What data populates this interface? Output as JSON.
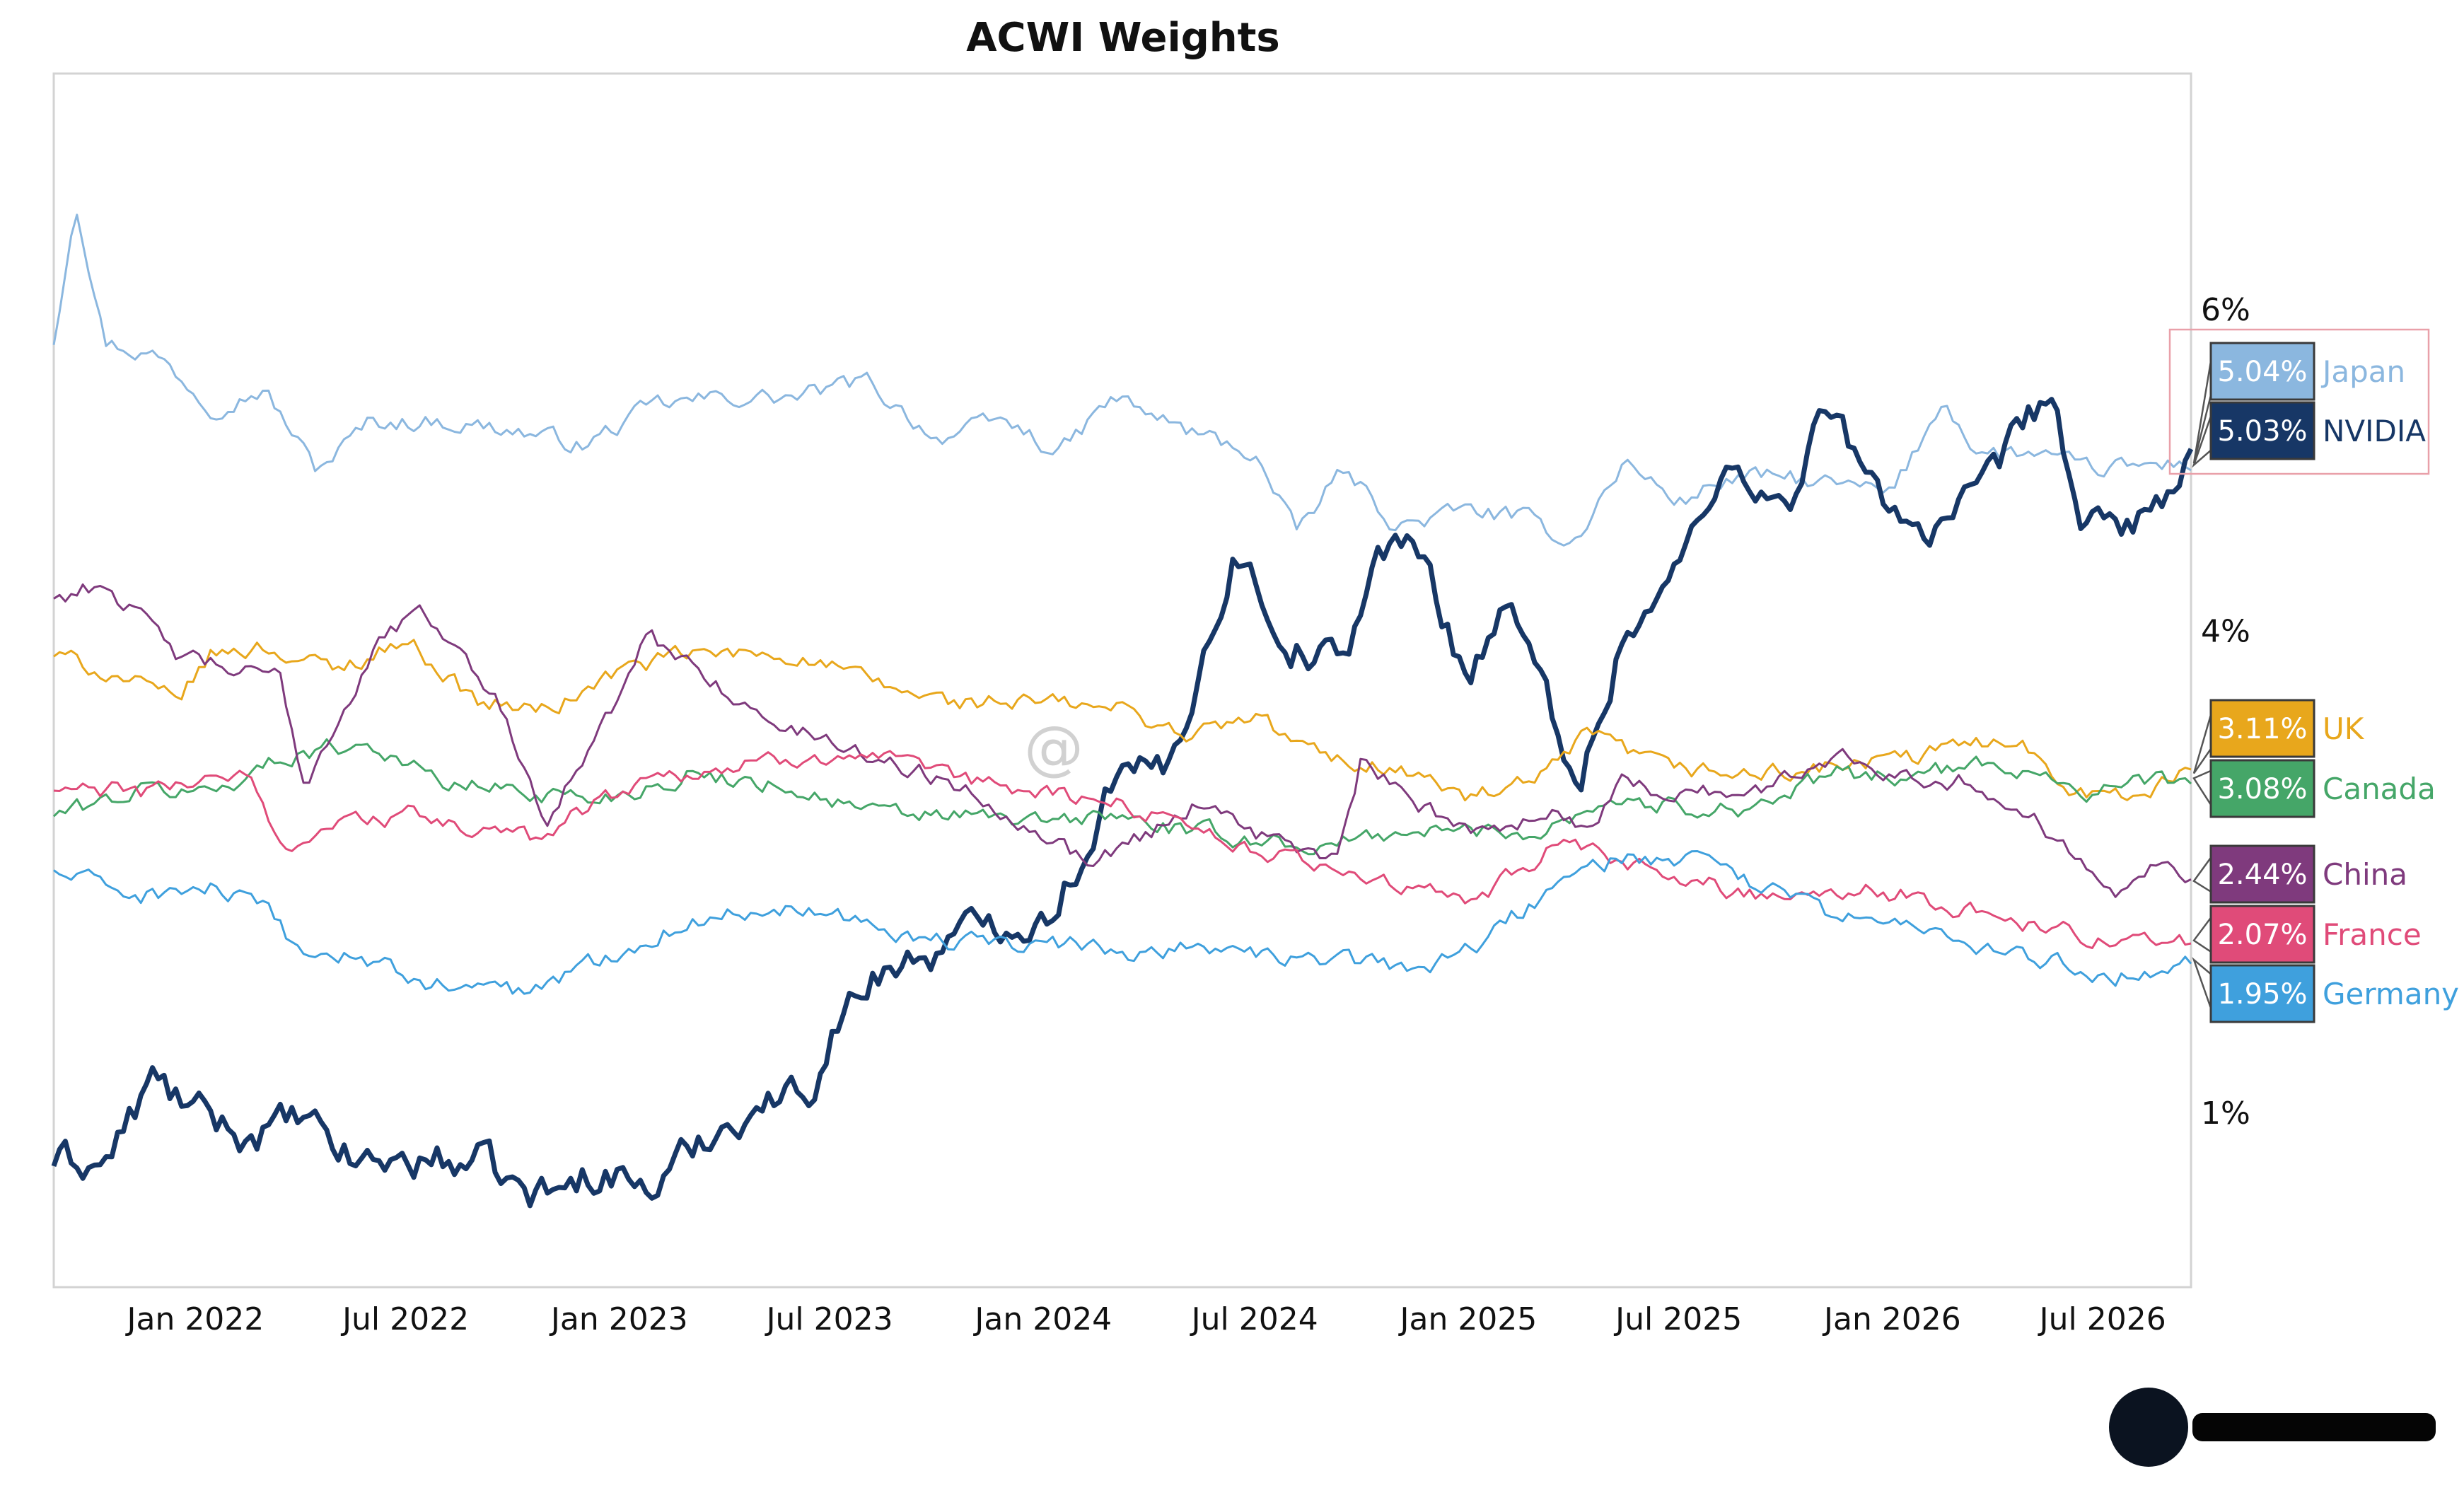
{
  "chart_data": {
    "type": "line",
    "title": "ACWI Weights",
    "xlabel": "",
    "ylabel": "",
    "x_ticks": [
      "Jan 2022",
      "Jul 2022",
      "Jan 2023",
      "Jul 2023",
      "Jan 2024",
      "Jul 2024",
      "Jan 2025",
      "Jul 2025",
      "Jan 2026",
      "Jul 2026"
    ],
    "y_ticks": [
      "1%",
      "4%",
      "6%"
    ],
    "ylim": [
      0,
      7
    ],
    "xlim": [
      "2021-09-01",
      "2026-09-15"
    ],
    "grid": false,
    "series": [
      {
        "name": "Japan",
        "last_label": "5.04%",
        "color": "#8bb7df",
        "width": 3,
        "points": [
          [
            "2021-09-01",
            5.8
          ],
          [
            "2021-09-20",
            6.7
          ],
          [
            "2021-10-15",
            5.8
          ],
          [
            "2021-12-01",
            5.7
          ],
          [
            "2022-01-15",
            5.4
          ],
          [
            "2022-03-01",
            5.5
          ],
          [
            "2022-04-15",
            5.0
          ],
          [
            "2022-06-01",
            5.3
          ],
          [
            "2022-08-01",
            5.3
          ],
          [
            "2022-10-01",
            5.25
          ],
          [
            "2022-12-01",
            5.15
          ],
          [
            "2023-02-01",
            5.4
          ],
          [
            "2023-04-01",
            5.45
          ],
          [
            "2023-06-01",
            5.45
          ],
          [
            "2023-08-01",
            5.55
          ],
          [
            "2023-10-01",
            5.2
          ],
          [
            "2023-12-01",
            5.3
          ],
          [
            "2024-01-15",
            5.1
          ],
          [
            "2024-03-01",
            5.45
          ],
          [
            "2024-05-01",
            5.25
          ],
          [
            "2024-07-01",
            5.1
          ],
          [
            "2024-08-05",
            4.6
          ],
          [
            "2024-09-15",
            5.0
          ],
          [
            "2024-11-01",
            4.65
          ],
          [
            "2025-01-01",
            4.75
          ],
          [
            "2025-02-15",
            4.7
          ],
          [
            "2025-04-01",
            4.55
          ],
          [
            "2025-05-15",
            5.05
          ],
          [
            "2025-07-01",
            4.8
          ],
          [
            "2025-08-15",
            4.95
          ],
          [
            "2025-10-01",
            4.95
          ],
          [
            "2026-01-01",
            4.85
          ],
          [
            "2026-02-15",
            5.45
          ],
          [
            "2026-03-15",
            5.1
          ],
          [
            "2026-05-01",
            5.1
          ],
          [
            "2026-06-15",
            5.0
          ],
          [
            "2026-09-15",
            5.04
          ]
        ]
      },
      {
        "name": "NVIDIA",
        "last_label": "5.03%",
        "color": "#173766",
        "width": 7,
        "points": [
          [
            "2021-09-01",
            0.7
          ],
          [
            "2021-10-15",
            0.68
          ],
          [
            "2021-11-25",
            1.2
          ],
          [
            "2022-01-01",
            1.0
          ],
          [
            "2022-02-15",
            0.85
          ],
          [
            "2022-04-01",
            0.95
          ],
          [
            "2022-05-15",
            0.7
          ],
          [
            "2022-07-01",
            0.7
          ],
          [
            "2022-09-01",
            0.7
          ],
          [
            "2022-10-15",
            0.48
          ],
          [
            "2022-11-15",
            0.52
          ],
          [
            "2022-12-15",
            0.65
          ],
          [
            "2023-02-01",
            0.52
          ],
          [
            "2023-03-15",
            0.85
          ],
          [
            "2023-05-01",
            1.05
          ],
          [
            "2023-06-15",
            1.15
          ],
          [
            "2023-07-01",
            1.5
          ],
          [
            "2023-08-15",
            1.9
          ],
          [
            "2023-10-01",
            2.0
          ],
          [
            "2023-11-15",
            2.2
          ],
          [
            "2024-01-01",
            2.2
          ],
          [
            "2024-02-01",
            2.55
          ],
          [
            "2024-03-01",
            3.1
          ],
          [
            "2024-04-15",
            3.1
          ],
          [
            "2024-06-15",
            4.5
          ],
          [
            "2024-08-01",
            3.9
          ],
          [
            "2024-09-15",
            3.8
          ],
          [
            "2024-10-15",
            4.5
          ],
          [
            "2024-11-20",
            4.5
          ],
          [
            "2025-01-01",
            3.7
          ],
          [
            "2025-02-01",
            4.2
          ],
          [
            "2025-04-08",
            3.05
          ],
          [
            "2025-05-15",
            4.0
          ],
          [
            "2025-06-15",
            4.2
          ],
          [
            "2025-07-15",
            4.6
          ],
          [
            "2025-08-20",
            5.1
          ],
          [
            "2025-10-01",
            4.7
          ],
          [
            "2025-11-01",
            5.4
          ],
          [
            "2025-12-15",
            4.9
          ],
          [
            "2026-02-01",
            4.6
          ],
          [
            "2026-03-15",
            4.8
          ],
          [
            "2026-05-15",
            5.5
          ],
          [
            "2026-06-15",
            4.6
          ],
          [
            "2026-08-01",
            4.7
          ],
          [
            "2026-09-15",
            5.03
          ]
        ]
      },
      {
        "name": "UK",
        "last_label": "3.11%",
        "color": "#e8a71c",
        "width": 3,
        "points": [
          [
            "2021-09-01",
            3.85
          ],
          [
            "2021-11-01",
            3.7
          ],
          [
            "2021-12-15",
            3.55
          ],
          [
            "2022-01-15",
            3.85
          ],
          [
            "2022-03-01",
            3.9
          ],
          [
            "2022-05-01",
            3.75
          ],
          [
            "2022-07-01",
            3.95
          ],
          [
            "2022-09-01",
            3.55
          ],
          [
            "2022-11-01",
            3.5
          ],
          [
            "2023-01-01",
            3.75
          ],
          [
            "2023-03-01",
            3.85
          ],
          [
            "2023-06-01",
            3.85
          ],
          [
            "2023-08-15",
            3.65
          ],
          [
            "2023-10-15",
            3.55
          ],
          [
            "2024-01-01",
            3.55
          ],
          [
            "2024-03-15",
            3.5
          ],
          [
            "2024-05-01",
            3.35
          ],
          [
            "2024-07-01",
            3.45
          ],
          [
            "2024-09-01",
            3.2
          ],
          [
            "2024-11-01",
            3.15
          ],
          [
            "2025-01-01",
            2.95
          ],
          [
            "2025-03-01",
            3.05
          ],
          [
            "2025-04-15",
            3.35
          ],
          [
            "2025-06-15",
            3.15
          ],
          [
            "2025-09-01",
            3.1
          ],
          [
            "2025-11-15",
            3.15
          ],
          [
            "2026-01-15",
            3.2
          ],
          [
            "2026-04-15",
            3.35
          ],
          [
            "2026-06-01",
            3.05
          ],
          [
            "2026-07-15",
            2.95
          ],
          [
            "2026-09-15",
            3.11
          ]
        ]
      },
      {
        "name": "Canada",
        "last_label": "3.08%",
        "color": "#45a668",
        "width": 3,
        "points": [
          [
            "2021-09-01",
            2.85
          ],
          [
            "2021-11-15",
            3.0
          ],
          [
            "2022-01-15",
            3.0
          ],
          [
            "2022-04-01",
            3.25
          ],
          [
            "2022-06-01",
            3.3
          ],
          [
            "2022-08-01",
            3.05
          ],
          [
            "2022-10-15",
            3.0
          ],
          [
            "2022-12-15",
            2.95
          ],
          [
            "2023-03-01",
            3.1
          ],
          [
            "2023-05-15",
            3.05
          ],
          [
            "2023-08-15",
            2.85
          ],
          [
            "2023-10-15",
            2.85
          ],
          [
            "2024-01-01",
            2.8
          ],
          [
            "2024-03-01",
            2.85
          ],
          [
            "2024-05-01",
            2.75
          ],
          [
            "2024-07-01",
            2.7
          ],
          [
            "2024-09-01",
            2.65
          ],
          [
            "2024-11-01",
            2.75
          ],
          [
            "2025-01-01",
            2.75
          ],
          [
            "2025-03-01",
            2.75
          ],
          [
            "2025-05-01",
            2.95
          ],
          [
            "2025-07-01",
            2.9
          ],
          [
            "2025-09-01",
            2.9
          ],
          [
            "2025-11-15",
            3.1
          ],
          [
            "2026-01-15",
            3.1
          ],
          [
            "2026-03-15",
            3.15
          ],
          [
            "2026-05-01",
            3.15
          ],
          [
            "2026-06-15",
            3.0
          ],
          [
            "2026-09-15",
            3.08
          ]
        ]
      },
      {
        "name": "China",
        "last_label": "2.44%",
        "color": "#7f3a7d",
        "width": 3,
        "points": [
          [
            "2021-09-01",
            4.2
          ],
          [
            "2021-10-15",
            4.3
          ],
          [
            "2021-12-15",
            3.85
          ],
          [
            "2022-02-01",
            3.75
          ],
          [
            "2022-03-15",
            3.7
          ],
          [
            "2022-04-05",
            3.05
          ],
          [
            "2022-05-15",
            3.6
          ],
          [
            "2022-06-15",
            4.0
          ],
          [
            "2022-07-20",
            4.1
          ],
          [
            "2022-09-15",
            3.6
          ],
          [
            "2022-10-30",
            2.85
          ],
          [
            "2022-12-15",
            3.35
          ],
          [
            "2023-01-25",
            3.95
          ],
          [
            "2023-03-15",
            3.75
          ],
          [
            "2023-05-01",
            3.45
          ],
          [
            "2023-06-15",
            3.35
          ],
          [
            "2023-08-15",
            3.2
          ],
          [
            "2023-10-15",
            3.05
          ],
          [
            "2024-01-15",
            2.7
          ],
          [
            "2024-02-05",
            2.55
          ],
          [
            "2024-04-01",
            2.75
          ],
          [
            "2024-05-20",
            2.95
          ],
          [
            "2024-07-01",
            2.75
          ],
          [
            "2024-09-10",
            2.55
          ],
          [
            "2024-10-01",
            3.2
          ],
          [
            "2024-11-15",
            2.9
          ],
          [
            "2025-01-15",
            2.75
          ],
          [
            "2025-03-15",
            2.9
          ],
          [
            "2025-04-08",
            2.75
          ],
          [
            "2025-05-15",
            3.05
          ],
          [
            "2025-07-01",
            3.0
          ],
          [
            "2025-09-15",
            3.0
          ],
          [
            "2025-11-15",
            3.25
          ],
          [
            "2026-01-15",
            3.1
          ],
          [
            "2026-03-15",
            3.05
          ],
          [
            "2026-05-15",
            2.75
          ],
          [
            "2026-07-15",
            2.4
          ],
          [
            "2026-08-15",
            2.6
          ],
          [
            "2026-09-15",
            2.44
          ]
        ]
      },
      {
        "name": "France",
        "last_label": "2.07%",
        "color": "#e04b79",
        "width": 3,
        "points": [
          [
            "2021-09-01",
            3.0
          ],
          [
            "2021-12-01",
            3.0
          ],
          [
            "2022-01-15",
            3.1
          ],
          [
            "2022-02-15",
            3.1
          ],
          [
            "2022-03-15",
            2.65
          ],
          [
            "2022-05-01",
            2.8
          ],
          [
            "2022-07-01",
            2.85
          ],
          [
            "2022-09-01",
            2.75
          ],
          [
            "2022-10-15",
            2.7
          ],
          [
            "2022-12-15",
            2.95
          ],
          [
            "2023-02-01",
            3.1
          ],
          [
            "2023-04-15",
            3.15
          ],
          [
            "2023-07-15",
            3.25
          ],
          [
            "2023-09-01",
            3.15
          ],
          [
            "2023-11-01",
            3.05
          ],
          [
            "2024-01-01",
            3.0
          ],
          [
            "2024-03-15",
            2.9
          ],
          [
            "2024-05-15",
            2.8
          ],
          [
            "2024-07-01",
            2.6
          ],
          [
            "2024-09-01",
            2.55
          ],
          [
            "2024-11-01",
            2.4
          ],
          [
            "2025-01-01",
            2.3
          ],
          [
            "2025-03-15",
            2.65
          ],
          [
            "2025-05-15",
            2.55
          ],
          [
            "2025-07-01",
            2.45
          ],
          [
            "2025-09-15",
            2.35
          ],
          [
            "2025-11-15",
            2.4
          ],
          [
            "2026-01-15",
            2.35
          ],
          [
            "2026-03-15",
            2.25
          ],
          [
            "2026-05-15",
            2.15
          ],
          [
            "2026-07-15",
            2.05
          ],
          [
            "2026-09-15",
            2.07
          ]
        ]
      },
      {
        "name": "Germany",
        "last_label": "1.95%",
        "color": "#3fa0dd",
        "width": 3,
        "points": [
          [
            "2021-09-01",
            2.5
          ],
          [
            "2021-11-15",
            2.35
          ],
          [
            "2022-01-15",
            2.4
          ],
          [
            "2022-03-01",
            2.25
          ],
          [
            "2022-04-01",
            2.0
          ],
          [
            "2022-06-01",
            1.95
          ],
          [
            "2022-07-15",
            1.8
          ],
          [
            "2022-10-15",
            1.75
          ],
          [
            "2022-12-15",
            1.95
          ],
          [
            "2023-02-15",
            2.15
          ],
          [
            "2023-04-15",
            2.25
          ],
          [
            "2023-06-15",
            2.3
          ],
          [
            "2023-08-15",
            2.15
          ],
          [
            "2023-10-15",
            2.05
          ],
          [
            "2024-01-01",
            2.05
          ],
          [
            "2024-03-15",
            2.0
          ],
          [
            "2024-05-15",
            2.05
          ],
          [
            "2024-07-15",
            1.95
          ],
          [
            "2024-09-15",
            1.95
          ],
          [
            "2024-11-15",
            1.9
          ],
          [
            "2025-01-01",
            2.0
          ],
          [
            "2025-03-15",
            2.4
          ],
          [
            "2025-05-15",
            2.6
          ],
          [
            "2025-07-15",
            2.55
          ],
          [
            "2025-09-15",
            2.4
          ],
          [
            "2025-11-15",
            2.2
          ],
          [
            "2026-01-15",
            2.2
          ],
          [
            "2026-03-15",
            2.0
          ],
          [
            "2026-05-15",
            1.95
          ],
          [
            "2026-07-15",
            1.85
          ],
          [
            "2026-09-15",
            1.95
          ]
        ]
      }
    ]
  }
}
